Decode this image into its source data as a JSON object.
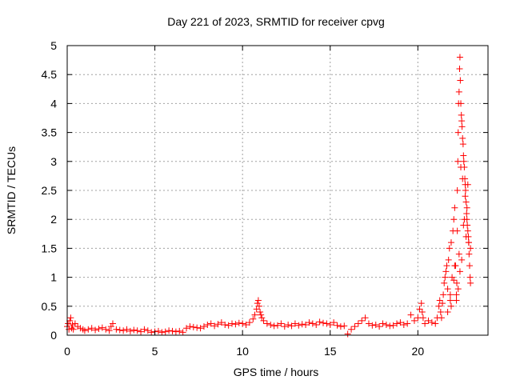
{
  "chart_data": {
    "type": "scatter",
    "title": "Day 221 of 2023, SRMTID for receiver cpvg",
    "xlabel": "GPS time / hours",
    "ylabel": "SRMTID / TECUs",
    "xlim": [
      0,
      24
    ],
    "ylim": [
      0,
      5
    ],
    "x_ticks": [
      0,
      5,
      10,
      15,
      20
    ],
    "x_tick_labels": [
      "0",
      "5",
      "10",
      "15",
      "20"
    ],
    "y_ticks": [
      0,
      0.5,
      1,
      1.5,
      2,
      2.5,
      3,
      3.5,
      4,
      4.5,
      5
    ],
    "y_tick_labels": [
      "0",
      "0.5",
      "1",
      "1.5",
      "2",
      "2.5",
      "3",
      "3.5",
      "4",
      "4.5",
      "5"
    ],
    "grid": true,
    "marker": "plus",
    "series": [
      {
        "name": "cpvg",
        "color": "#ff0000",
        "x": [
          0.0,
          0.05,
          0.1,
          0.15,
          0.2,
          0.25,
          0.3,
          0.35,
          0.45,
          0.6,
          0.75,
          0.9,
          1.0,
          1.2,
          1.4,
          1.6,
          1.8,
          2.0,
          2.2,
          2.4,
          2.5,
          2.6,
          2.8,
          3.0,
          3.2,
          3.4,
          3.6,
          3.8,
          4.0,
          4.2,
          4.4,
          4.6,
          4.8,
          5.0,
          5.2,
          5.4,
          5.6,
          5.8,
          6.0,
          6.2,
          6.4,
          6.6,
          6.8,
          7.0,
          7.2,
          7.4,
          7.6,
          7.8,
          8.0,
          8.2,
          8.4,
          8.6,
          8.8,
          9.0,
          9.2,
          9.4,
          9.6,
          9.8,
          10.0,
          10.2,
          10.4,
          10.6,
          10.7,
          10.8,
          10.85,
          10.9,
          10.95,
          11.0,
          11.05,
          11.1,
          11.2,
          11.4,
          11.6,
          11.8,
          12.0,
          12.2,
          12.4,
          12.6,
          12.8,
          13.0,
          13.2,
          13.4,
          13.6,
          13.8,
          14.0,
          14.2,
          14.4,
          14.6,
          14.8,
          15.0,
          15.2,
          15.4,
          15.6,
          15.8,
          16.0,
          16.2,
          16.4,
          16.6,
          16.8,
          17.0,
          17.2,
          17.4,
          17.6,
          17.8,
          18.0,
          18.2,
          18.4,
          18.6,
          18.8,
          19.0,
          19.2,
          19.4,
          19.6,
          19.8,
          20.0,
          20.1,
          20.2,
          20.25,
          20.3,
          20.4,
          20.6,
          20.8,
          21.0,
          21.1,
          21.2,
          21.25,
          21.3,
          21.35,
          21.4,
          21.45,
          21.5,
          21.55,
          21.6,
          21.65,
          21.7,
          21.75,
          21.8,
          21.85,
          21.9,
          21.95,
          22.0,
          22.05,
          22.1,
          22.15,
          22.2,
          22.22,
          22.25,
          22.28,
          22.3,
          22.32,
          22.35,
          22.38,
          22.4,
          22.42,
          22.45,
          22.48,
          22.5,
          22.52,
          22.55,
          22.58,
          22.6,
          22.62,
          22.65,
          22.68,
          22.7,
          22.72,
          22.75,
          22.78,
          22.8,
          22.82,
          22.85,
          22.88,
          22.9,
          22.92,
          22.95,
          22.98,
          23.0,
          23.0,
          22.5,
          22.3,
          22.6,
          22.7,
          22.4,
          22.8,
          22.2,
          22.9,
          22.55,
          22.45,
          22.65,
          22.75,
          22.35,
          22.85,
          22.25,
          21.9,
          22.1,
          21.7,
          21.85,
          22.05
        ],
        "y": [
          0.15,
          0.2,
          0.1,
          0.25,
          0.3,
          0.12,
          0.18,
          0.1,
          0.2,
          0.15,
          0.12,
          0.1,
          0.08,
          0.1,
          0.12,
          0.09,
          0.11,
          0.13,
          0.1,
          0.08,
          0.15,
          0.2,
          0.1,
          0.09,
          0.08,
          0.1,
          0.07,
          0.09,
          0.08,
          0.06,
          0.1,
          0.08,
          0.05,
          0.06,
          0.07,
          0.05,
          0.06,
          0.08,
          0.07,
          0.06,
          0.07,
          0.05,
          0.12,
          0.15,
          0.14,
          0.13,
          0.12,
          0.15,
          0.18,
          0.2,
          0.16,
          0.19,
          0.22,
          0.18,
          0.17,
          0.2,
          0.19,
          0.21,
          0.2,
          0.18,
          0.22,
          0.28,
          0.35,
          0.45,
          0.55,
          0.6,
          0.5,
          0.4,
          0.35,
          0.3,
          0.25,
          0.2,
          0.18,
          0.16,
          0.17,
          0.2,
          0.15,
          0.18,
          0.16,
          0.2,
          0.17,
          0.19,
          0.18,
          0.22,
          0.2,
          0.18,
          0.23,
          0.21,
          0.2,
          0.18,
          0.22,
          0.17,
          0.15,
          0.16,
          0.02,
          0.1,
          0.15,
          0.2,
          0.25,
          0.3,
          0.2,
          0.17,
          0.18,
          0.15,
          0.2,
          0.18,
          0.16,
          0.17,
          0.2,
          0.22,
          0.18,
          0.2,
          0.35,
          0.25,
          0.3,
          0.45,
          0.55,
          0.4,
          0.3,
          0.2,
          0.25,
          0.22,
          0.2,
          0.3,
          0.5,
          0.6,
          0.4,
          0.3,
          0.55,
          0.7,
          0.9,
          1.0,
          1.1,
          1.2,
          0.8,
          1.3,
          1.5,
          0.7,
          1.6,
          1.0,
          1.8,
          2.0,
          2.2,
          1.2,
          0.6,
          0.9,
          2.5,
          3.0,
          3.5,
          4.0,
          4.2,
          4.6,
          4.8,
          4.4,
          4.0,
          3.8,
          3.7,
          3.6,
          3.4,
          3.3,
          3.1,
          3.0,
          2.9,
          2.7,
          2.6,
          2.5,
          2.3,
          2.1,
          2.0,
          1.9,
          1.8,
          1.7,
          1.6,
          1.4,
          1.2,
          1.0,
          0.9,
          1.5,
          1.3,
          0.8,
          1.9,
          2.4,
          1.1,
          2.2,
          0.7,
          1.6,
          2.7,
          2.9,
          2.0,
          1.7,
          1.4,
          2.6,
          1.8,
          0.5,
          1.2,
          0.4,
          0.6,
          0.95
        ]
      }
    ]
  }
}
